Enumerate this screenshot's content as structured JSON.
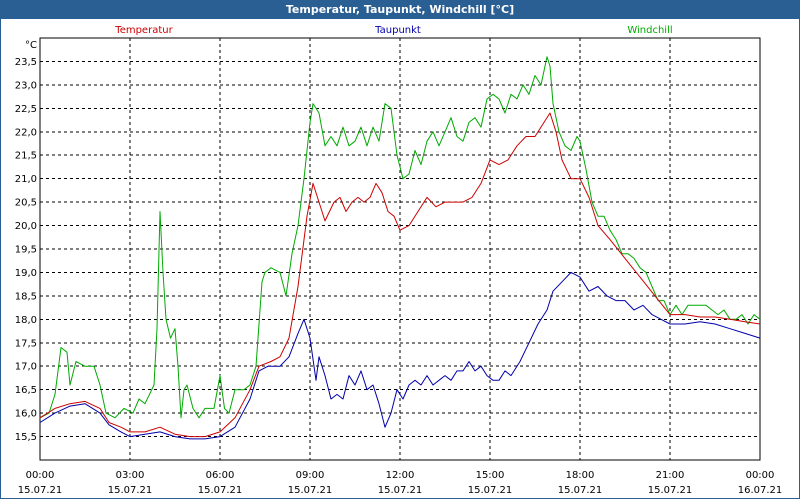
{
  "window": {
    "title": "Temperatur, Taupunkt, Windchill [°C]"
  },
  "chart_data": {
    "type": "line",
    "title": "Temperatur, Taupunkt, Windchill [°C]",
    "ylabel": "°C",
    "xlabel": "",
    "ylim": [
      15.0,
      24.0
    ],
    "xlim": [
      0,
      24
    ],
    "grid": true,
    "yticks": [
      15.5,
      16.0,
      16.5,
      17.0,
      17.5,
      18.0,
      18.5,
      19.0,
      19.5,
      20.0,
      20.5,
      21.0,
      21.5,
      22.0,
      22.5,
      23.0,
      23.5
    ],
    "ytick_labels": [
      "15,5",
      "16,0",
      "16,5",
      "17,0",
      "17,5",
      "18,0",
      "18,5",
      "19,0",
      "19,5",
      "20,0",
      "20,5",
      "21,0",
      "21,5",
      "22,0",
      "22,5",
      "23,0",
      "23,5"
    ],
    "xticks": [
      {
        "h": 0,
        "time": "00:00",
        "date": "15.07.21"
      },
      {
        "h": 3,
        "time": "03:00",
        "date": "15.07.21"
      },
      {
        "h": 6,
        "time": "06:00",
        "date": "15.07.21"
      },
      {
        "h": 9,
        "time": "09:00",
        "date": "15.07.21"
      },
      {
        "h": 12,
        "time": "12:00",
        "date": "15.07.21"
      },
      {
        "h": 15,
        "time": "15:00",
        "date": "15.07.21"
      },
      {
        "h": 18,
        "time": "18:00",
        "date": "15.07.21"
      },
      {
        "h": 21,
        "time": "21:00",
        "date": "15.07.21"
      },
      {
        "h": 24,
        "time": "00:00",
        "date": "16.07.21"
      }
    ],
    "legend": [
      {
        "name": "Temperatur",
        "color": "#cc0000"
      },
      {
        "name": "Taupunkt",
        "color": "#0000aa"
      },
      {
        "name": "Windchill",
        "color": "#00aa00"
      }
    ],
    "series": [
      {
        "name": "Windchill",
        "color": "#00aa00",
        "points": [
          [
            0,
            15.9
          ],
          [
            0.3,
            16.0
          ],
          [
            0.5,
            16.4
          ],
          [
            0.7,
            17.4
          ],
          [
            0.9,
            17.3
          ],
          [
            1.0,
            16.6
          ],
          [
            1.2,
            17.1
          ],
          [
            1.5,
            17.0
          ],
          [
            1.8,
            17.0
          ],
          [
            2.0,
            16.6
          ],
          [
            2.2,
            16.0
          ],
          [
            2.5,
            15.9
          ],
          [
            2.8,
            16.1
          ],
          [
            3.1,
            16.0
          ],
          [
            3.3,
            16.3
          ],
          [
            3.5,
            16.2
          ],
          [
            3.8,
            16.6
          ],
          [
            3.9,
            17.8
          ],
          [
            4.0,
            20.3
          ],
          [
            4.1,
            19.0
          ],
          [
            4.2,
            18.0
          ],
          [
            4.35,
            17.6
          ],
          [
            4.5,
            17.8
          ],
          [
            4.6,
            17.0
          ],
          [
            4.7,
            15.9
          ],
          [
            4.8,
            16.5
          ],
          [
            4.9,
            16.6
          ],
          [
            5.1,
            16.1
          ],
          [
            5.3,
            15.9
          ],
          [
            5.5,
            16.1
          ],
          [
            5.8,
            16.1
          ],
          [
            6.0,
            16.8
          ],
          [
            6.15,
            16.1
          ],
          [
            6.3,
            16.0
          ],
          [
            6.5,
            16.5
          ],
          [
            6.8,
            16.5
          ],
          [
            7.0,
            16.6
          ],
          [
            7.2,
            17.0
          ],
          [
            7.4,
            18.8
          ],
          [
            7.5,
            19.0
          ],
          [
            7.7,
            19.1
          ],
          [
            8.0,
            19.0
          ],
          [
            8.2,
            18.5
          ],
          [
            8.4,
            19.4
          ],
          [
            8.6,
            20.0
          ],
          [
            8.8,
            21.0
          ],
          [
            9.0,
            22.2
          ],
          [
            9.1,
            22.6
          ],
          [
            9.3,
            22.4
          ],
          [
            9.5,
            21.7
          ],
          [
            9.7,
            21.9
          ],
          [
            9.9,
            21.7
          ],
          [
            10.1,
            22.1
          ],
          [
            10.3,
            21.7
          ],
          [
            10.5,
            21.8
          ],
          [
            10.7,
            22.1
          ],
          [
            10.9,
            21.7
          ],
          [
            11.1,
            22.1
          ],
          [
            11.3,
            21.8
          ],
          [
            11.5,
            22.6
          ],
          [
            11.7,
            22.5
          ],
          [
            11.9,
            21.5
          ],
          [
            12.1,
            21.0
          ],
          [
            12.3,
            21.1
          ],
          [
            12.5,
            21.6
          ],
          [
            12.7,
            21.3
          ],
          [
            12.9,
            21.8
          ],
          [
            13.1,
            22.0
          ],
          [
            13.3,
            21.7
          ],
          [
            13.5,
            22.0
          ],
          [
            13.7,
            22.3
          ],
          [
            13.9,
            21.9
          ],
          [
            14.1,
            21.8
          ],
          [
            14.3,
            22.2
          ],
          [
            14.5,
            22.3
          ],
          [
            14.7,
            22.1
          ],
          [
            14.9,
            22.7
          ],
          [
            15.1,
            22.8
          ],
          [
            15.3,
            22.7
          ],
          [
            15.5,
            22.4
          ],
          [
            15.7,
            22.8
          ],
          [
            15.9,
            22.7
          ],
          [
            16.1,
            23.0
          ],
          [
            16.3,
            22.8
          ],
          [
            16.5,
            23.2
          ],
          [
            16.7,
            23.0
          ],
          [
            16.9,
            23.6
          ],
          [
            17.0,
            23.4
          ],
          [
            17.1,
            22.6
          ],
          [
            17.3,
            22.0
          ],
          [
            17.5,
            21.7
          ],
          [
            17.7,
            21.6
          ],
          [
            17.9,
            21.9
          ],
          [
            18.0,
            21.8
          ],
          [
            18.2,
            21.2
          ],
          [
            18.4,
            20.5
          ],
          [
            18.6,
            20.2
          ],
          [
            18.8,
            20.2
          ],
          [
            19.0,
            19.9
          ],
          [
            19.2,
            19.7
          ],
          [
            19.4,
            19.4
          ],
          [
            19.6,
            19.4
          ],
          [
            19.8,
            19.3
          ],
          [
            20.0,
            19.1
          ],
          [
            20.2,
            19.0
          ],
          [
            20.4,
            18.7
          ],
          [
            20.6,
            18.4
          ],
          [
            20.8,
            18.4
          ],
          [
            21.0,
            18.1
          ],
          [
            21.2,
            18.3
          ],
          [
            21.4,
            18.1
          ],
          [
            21.6,
            18.3
          ],
          [
            21.8,
            18.3
          ],
          [
            22.0,
            18.3
          ],
          [
            22.2,
            18.3
          ],
          [
            22.4,
            18.2
          ],
          [
            22.6,
            18.1
          ],
          [
            22.8,
            18.2
          ],
          [
            23.0,
            18.0
          ],
          [
            23.2,
            18.0
          ],
          [
            23.4,
            18.1
          ],
          [
            23.6,
            17.9
          ],
          [
            23.8,
            18.1
          ],
          [
            24.0,
            18.0
          ]
        ]
      },
      {
        "name": "Temperatur",
        "color": "#cc0000",
        "points": [
          [
            0,
            15.9
          ],
          [
            0.5,
            16.1
          ],
          [
            1.0,
            16.2
          ],
          [
            1.5,
            16.25
          ],
          [
            2.0,
            16.1
          ],
          [
            2.3,
            15.8
          ],
          [
            2.7,
            15.7
          ],
          [
            3.0,
            15.6
          ],
          [
            3.5,
            15.6
          ],
          [
            4.0,
            15.7
          ],
          [
            4.5,
            15.55
          ],
          [
            5.0,
            15.5
          ],
          [
            5.5,
            15.5
          ],
          [
            6.0,
            15.6
          ],
          [
            6.5,
            15.9
          ],
          [
            7.0,
            16.5
          ],
          [
            7.3,
            17.0
          ],
          [
            7.7,
            17.1
          ],
          [
            8.0,
            17.2
          ],
          [
            8.3,
            17.6
          ],
          [
            8.6,
            18.7
          ],
          [
            8.9,
            20.2
          ],
          [
            9.1,
            20.9
          ],
          [
            9.3,
            20.5
          ],
          [
            9.5,
            20.1
          ],
          [
            9.8,
            20.5
          ],
          [
            10.0,
            20.6
          ],
          [
            10.2,
            20.3
          ],
          [
            10.4,
            20.5
          ],
          [
            10.6,
            20.6
          ],
          [
            10.8,
            20.5
          ],
          [
            11.0,
            20.6
          ],
          [
            11.2,
            20.9
          ],
          [
            11.4,
            20.7
          ],
          [
            11.6,
            20.3
          ],
          [
            11.8,
            20.2
          ],
          [
            12.0,
            19.9
          ],
          [
            12.3,
            20.0
          ],
          [
            12.6,
            20.3
          ],
          [
            12.9,
            20.6
          ],
          [
            13.2,
            20.4
          ],
          [
            13.5,
            20.5
          ],
          [
            13.8,
            20.5
          ],
          [
            14.1,
            20.5
          ],
          [
            14.4,
            20.6
          ],
          [
            14.7,
            20.9
          ],
          [
            15.0,
            21.4
          ],
          [
            15.3,
            21.3
          ],
          [
            15.6,
            21.4
          ],
          [
            15.9,
            21.7
          ],
          [
            16.2,
            21.9
          ],
          [
            16.5,
            21.9
          ],
          [
            16.8,
            22.2
          ],
          [
            17.0,
            22.4
          ],
          [
            17.2,
            22.0
          ],
          [
            17.4,
            21.4
          ],
          [
            17.7,
            21.0
          ],
          [
            18.0,
            21.0
          ],
          [
            18.3,
            20.6
          ],
          [
            18.6,
            20.0
          ],
          [
            19.0,
            19.7
          ],
          [
            19.5,
            19.3
          ],
          [
            20.0,
            18.9
          ],
          [
            20.5,
            18.5
          ],
          [
            21.0,
            18.1
          ],
          [
            21.5,
            18.1
          ],
          [
            22.0,
            18.05
          ],
          [
            22.5,
            18.05
          ],
          [
            23.0,
            18.0
          ],
          [
            23.5,
            17.95
          ],
          [
            24.0,
            17.9
          ]
        ]
      },
      {
        "name": "Taupunkt",
        "color": "#0000aa",
        "points": [
          [
            0,
            15.8
          ],
          [
            0.5,
            16.0
          ],
          [
            1.0,
            16.15
          ],
          [
            1.5,
            16.2
          ],
          [
            2.0,
            16.0
          ],
          [
            2.3,
            15.75
          ],
          [
            2.7,
            15.6
          ],
          [
            3.0,
            15.5
          ],
          [
            3.5,
            15.55
          ],
          [
            4.0,
            15.6
          ],
          [
            4.5,
            15.5
          ],
          [
            5.0,
            15.45
          ],
          [
            5.5,
            15.45
          ],
          [
            6.0,
            15.5
          ],
          [
            6.5,
            15.7
          ],
          [
            7.0,
            16.3
          ],
          [
            7.3,
            16.9
          ],
          [
            7.6,
            17.0
          ],
          [
            8.0,
            17.0
          ],
          [
            8.3,
            17.2
          ],
          [
            8.6,
            17.7
          ],
          [
            8.8,
            18.0
          ],
          [
            9.0,
            17.6
          ],
          [
            9.2,
            16.7
          ],
          [
            9.3,
            17.2
          ],
          [
            9.5,
            16.8
          ],
          [
            9.7,
            16.3
          ],
          [
            9.9,
            16.4
          ],
          [
            10.1,
            16.3
          ],
          [
            10.3,
            16.8
          ],
          [
            10.5,
            16.6
          ],
          [
            10.7,
            16.9
          ],
          [
            10.9,
            16.5
          ],
          [
            11.1,
            16.6
          ],
          [
            11.3,
            16.2
          ],
          [
            11.5,
            15.7
          ],
          [
            11.7,
            16.0
          ],
          [
            11.9,
            16.5
          ],
          [
            12.1,
            16.3
          ],
          [
            12.3,
            16.6
          ],
          [
            12.5,
            16.7
          ],
          [
            12.7,
            16.6
          ],
          [
            12.9,
            16.8
          ],
          [
            13.1,
            16.6
          ],
          [
            13.3,
            16.7
          ],
          [
            13.5,
            16.8
          ],
          [
            13.7,
            16.7
          ],
          [
            13.9,
            16.9
          ],
          [
            14.1,
            16.9
          ],
          [
            14.3,
            17.1
          ],
          [
            14.5,
            16.9
          ],
          [
            14.7,
            17.0
          ],
          [
            14.9,
            16.8
          ],
          [
            15.1,
            16.7
          ],
          [
            15.3,
            16.7
          ],
          [
            15.5,
            16.9
          ],
          [
            15.7,
            16.8
          ],
          [
            16.0,
            17.1
          ],
          [
            16.3,
            17.5
          ],
          [
            16.6,
            17.9
          ],
          [
            16.9,
            18.2
          ],
          [
            17.1,
            18.6
          ],
          [
            17.4,
            18.8
          ],
          [
            17.7,
            19.0
          ],
          [
            18.0,
            18.9
          ],
          [
            18.3,
            18.6
          ],
          [
            18.6,
            18.7
          ],
          [
            18.9,
            18.5
          ],
          [
            19.2,
            18.4
          ],
          [
            19.5,
            18.4
          ],
          [
            19.8,
            18.2
          ],
          [
            20.1,
            18.3
          ],
          [
            20.4,
            18.1
          ],
          [
            20.7,
            18.0
          ],
          [
            21.0,
            17.9
          ],
          [
            21.5,
            17.9
          ],
          [
            22.0,
            17.95
          ],
          [
            22.5,
            17.9
          ],
          [
            23.0,
            17.8
          ],
          [
            23.5,
            17.7
          ],
          [
            24.0,
            17.6
          ]
        ]
      }
    ]
  }
}
